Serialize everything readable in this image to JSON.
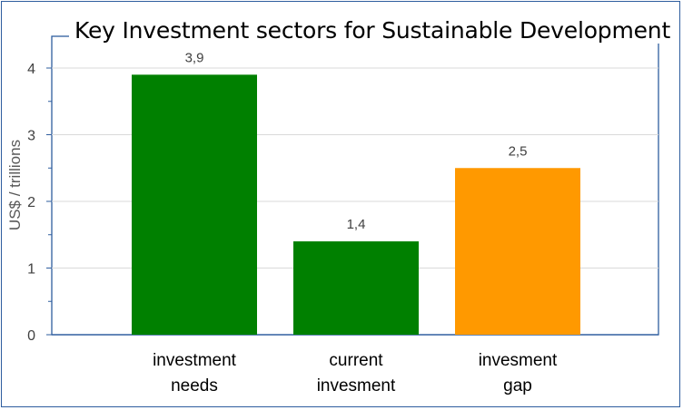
{
  "chart_data": {
    "type": "bar",
    "title": "Key Investment sectors for Sustainable Development",
    "ylabel": "US$  / trillions",
    "xlabel": "",
    "categories": [
      [
        "investment",
        "needs"
      ],
      [
        "current",
        "invesment"
      ],
      [
        "invesment",
        "gap"
      ]
    ],
    "values": [
      3.9,
      1.4,
      2.5
    ],
    "value_labels": [
      "3,9",
      "1,4",
      "2,5"
    ],
    "bar_colors": [
      "#008000",
      "#008000",
      "#ff9900"
    ],
    "ylim": [
      0,
      4
    ],
    "yticks": [
      0,
      1,
      2,
      3,
      4
    ],
    "ytick_labels": [
      "0",
      "1",
      "2",
      "3",
      "4"
    ],
    "grid": true,
    "legend": "none"
  }
}
